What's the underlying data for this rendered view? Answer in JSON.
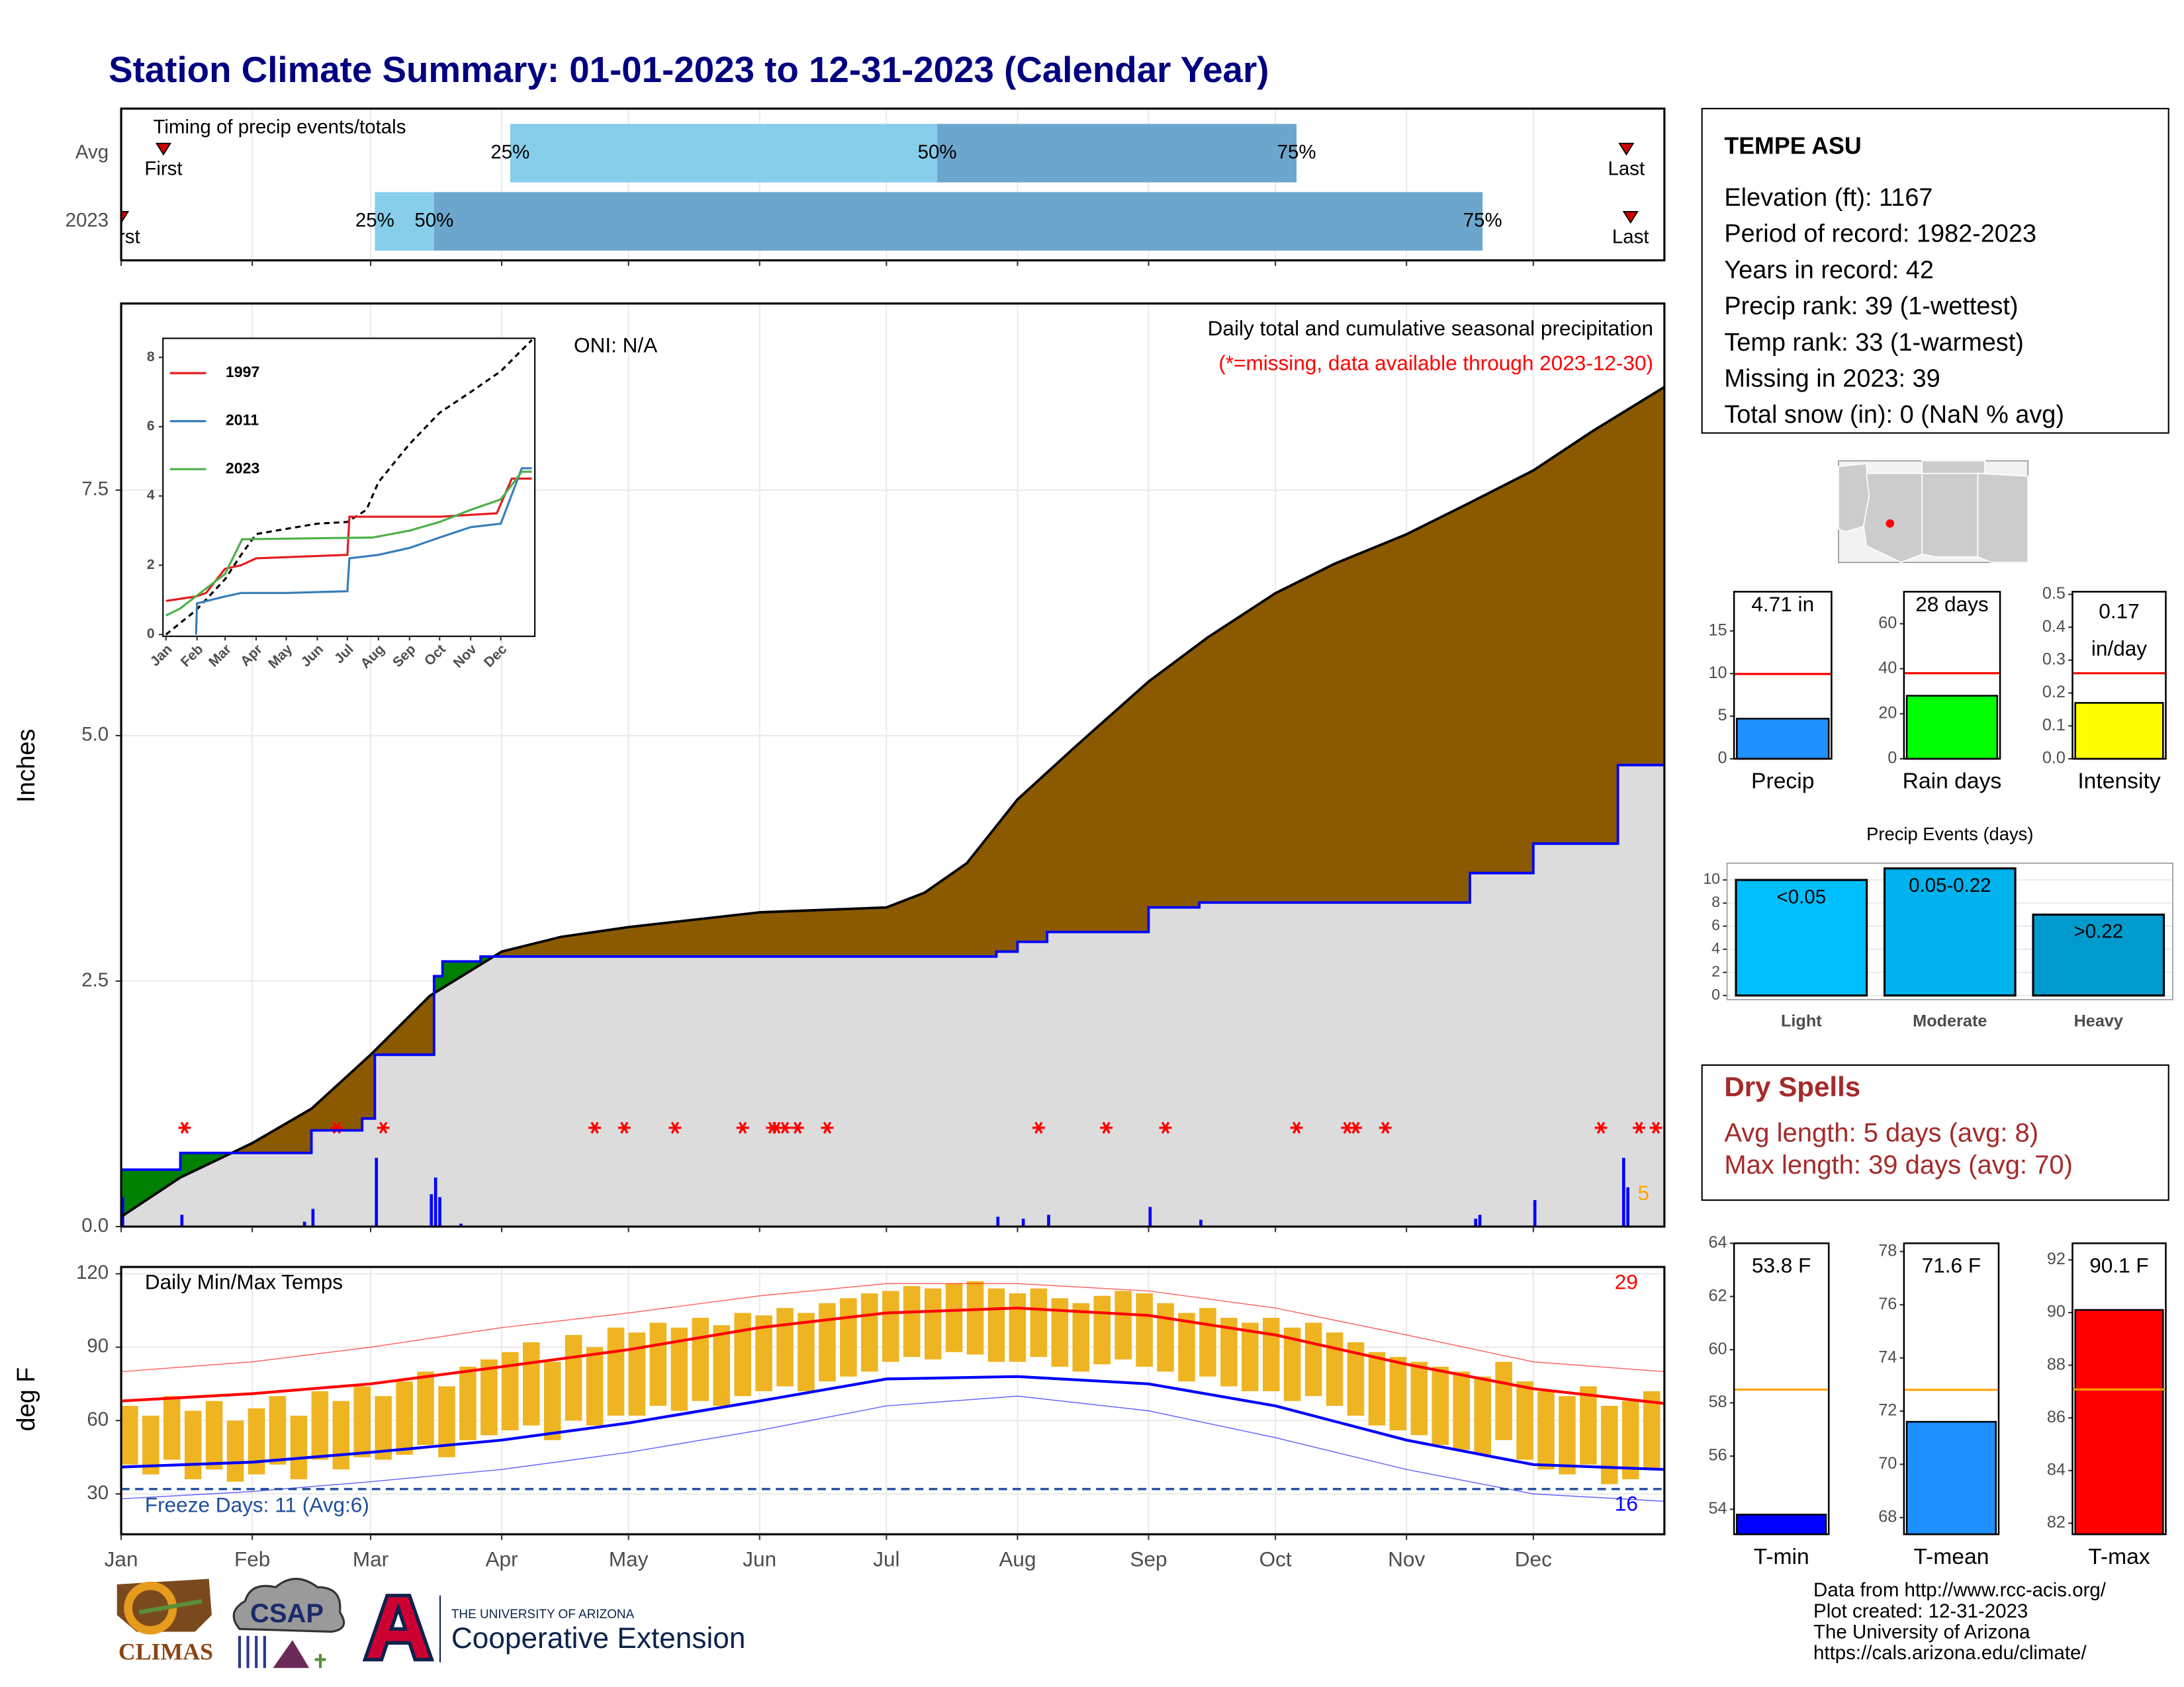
{
  "title": "Station Climate Summary: 01-01-2023 to 12-31-2023 (Calendar Year)",
  "x_axis": {
    "xlim": [
      0,
      365
    ],
    "xticks": [
      {
        "value": 0,
        "label": "Jan"
      },
      {
        "value": 31,
        "label": "Feb"
      },
      {
        "value": 59,
        "label": "Mar"
      },
      {
        "value": 90,
        "label": "Apr"
      },
      {
        "value": 120,
        "label": "May"
      },
      {
        "value": 151,
        "label": "Jun"
      },
      {
        "value": 181,
        "label": "Jul"
      },
      {
        "value": 212,
        "label": "Aug"
      },
      {
        "value": 243,
        "label": "Sep"
      },
      {
        "value": 273,
        "label": "Oct"
      },
      {
        "value": 304,
        "label": "Nov"
      },
      {
        "value": 334,
        "label": "Dec"
      }
    ]
  },
  "chart_data": [
    {
      "type": "timing",
      "title": "Timing of precip events/totals",
      "first_label": "First",
      "last_label": "Last",
      "quantile_labels": [
        "25%",
        "50%",
        "75%"
      ],
      "colors": [
        "#87CEEB",
        "#6CA6CD"
      ],
      "rows": [
        {
          "name": "Avg",
          "first": 10,
          "quantiles": [
            92,
            193,
            278
          ],
          "last": 356
        },
        {
          "name": "2023",
          "first": 0,
          "quantiles": [
            60,
            74,
            322
          ],
          "last": 357
        }
      ]
    },
    {
      "type": "cumulative_precip",
      "title": "Daily total and cumulative seasonal precipitation",
      "subtitle": "(*=missing, data available through 2023-12-30)",
      "annotation": "ONI: N/A",
      "ylabel": "Inches",
      "ylim": [
        0,
        9.4
      ],
      "yticks": [
        {
          "value": 0,
          "label": "0.0"
        },
        2.5,
        {
          "value": 5,
          "label": "5.0"
        },
        7.5
      ],
      "grid": true,
      "average": {
        "color": "#8B5A00",
        "x": [
          0,
          14,
          31,
          45,
          59,
          73,
          90,
          104,
          120,
          151,
          181,
          190,
          200,
          212,
          226,
          243,
          257,
          273,
          287,
          304,
          318,
          334,
          348,
          365
        ],
        "values": [
          0.1,
          0.5,
          0.85,
          1.2,
          1.75,
          2.35,
          2.8,
          2.95,
          3.05,
          3.2,
          3.25,
          3.4,
          3.7,
          4.35,
          4.9,
          5.55,
          6.0,
          6.45,
          6.75,
          7.05,
          7.35,
          7.7,
          8.1,
          8.55
        ]
      },
      "observed": {
        "color": "#0000FF",
        "x": [
          0,
          14,
          45,
          57,
          60,
          74,
          76,
          85,
          207,
          212,
          219,
          243,
          255,
          319,
          334,
          354,
          365
        ],
        "values": [
          0.58,
          0.75,
          0.98,
          1.1,
          1.75,
          2.55,
          2.7,
          2.75,
          2.8,
          2.9,
          3.0,
          3.25,
          3.3,
          3.6,
          3.9,
          4.7,
          4.7
        ]
      },
      "daily": {
        "color": "#0000FF",
        "x": [
          0,
          14,
          43,
          45,
          60,
          73,
          74,
          75,
          80,
          207,
          213,
          219,
          243,
          255,
          320,
          321,
          334,
          355,
          356
        ],
        "values": [
          0.3,
          0.12,
          0.05,
          0.18,
          0.7,
          0.33,
          0.5,
          0.3,
          0.03,
          0.1,
          0.08,
          0.12,
          0.2,
          0.07,
          0.08,
          0.12,
          0.27,
          0.7,
          0.4
        ]
      },
      "missing_days": [
        15,
        51,
        62,
        112,
        119,
        131,
        147,
        154,
        155,
        157,
        160,
        167,
        217,
        233,
        247,
        278,
        290,
        292,
        299,
        350,
        359,
        363
      ],
      "extreme_count": 5
    },
    {
      "type": "line",
      "xlim": [
        -3,
        368
      ],
      "ylim": [
        -0.05,
        8.55
      ],
      "yticks": [
        0,
        2,
        4,
        6,
        8
      ],
      "xticks": [
        {
          "value": 0,
          "label": "Jan"
        },
        {
          "value": 31,
          "label": "Feb"
        },
        {
          "value": 59,
          "label": "Mar"
        },
        {
          "value": 90,
          "label": "Apr"
        },
        {
          "value": 120,
          "label": "May"
        },
        {
          "value": 151,
          "label": "Jun"
        },
        {
          "value": 181,
          "label": "Jul"
        },
        {
          "value": 212,
          "label": "Aug"
        },
        {
          "value": 243,
          "label": "Sep"
        },
        {
          "value": 273,
          "label": "Oct"
        },
        {
          "value": 304,
          "label": "Nov"
        },
        {
          "value": 334,
          "label": "Dec"
        }
      ],
      "average": {
        "color": "#000000",
        "x": [
          0,
          30,
          59,
          75,
          90,
          120,
          151,
          181,
          200,
          212,
          243,
          273,
          304,
          334,
          365
        ],
        "values": [
          0,
          0.7,
          1.6,
          2.3,
          2.9,
          3.05,
          3.2,
          3.25,
          3.6,
          4.4,
          5.5,
          6.4,
          7.0,
          7.6,
          8.5
        ]
      },
      "series": [
        {
          "name": "1997",
          "color": "#E41A1C",
          "x": [
            0,
            30,
            40,
            59,
            75,
            90,
            181,
            183,
            273,
            330,
            345,
            365
          ],
          "values": [
            0.97,
            1.1,
            1.2,
            1.9,
            2.0,
            2.2,
            2.3,
            3.4,
            3.4,
            3.5,
            4.5,
            4.5
          ]
        },
        {
          "name": "2011",
          "color": "#377EB8",
          "x": [
            30,
            31,
            59,
            75,
            120,
            181,
            183,
            212,
            243,
            273,
            304,
            334,
            355,
            365
          ],
          "values": [
            0,
            0.9,
            1.1,
            1.2,
            1.2,
            1.25,
            2.2,
            2.3,
            2.5,
            2.8,
            3.1,
            3.2,
            4.8,
            4.8
          ]
        },
        {
          "name": "2023",
          "color": "#4DAF4A",
          "x": [
            0,
            14,
            59,
            76,
            206,
            243,
            273,
            304,
            334,
            355,
            365
          ],
          "values": [
            0.55,
            0.75,
            1.75,
            2.75,
            2.8,
            3.0,
            3.25,
            3.6,
            3.9,
            4.7,
            4.7
          ]
        }
      ]
    },
    {
      "type": "temperature",
      "title": "Daily Min/Max Temps",
      "ylabel": "deg F",
      "ylim": [
        13.5,
        122.8
      ],
      "yticks": [
        30,
        60,
        90,
        120
      ],
      "bar_color": "#EEB422",
      "x": [
        2,
        7,
        12,
        17,
        22,
        27,
        32,
        37,
        42,
        47,
        52,
        57,
        62,
        67,
        72,
        77,
        82,
        87,
        92,
        97,
        102,
        107,
        112,
        117,
        122,
        127,
        132,
        137,
        142,
        147,
        152,
        157,
        162,
        167,
        172,
        177,
        182,
        187,
        192,
        197,
        202,
        207,
        212,
        217,
        222,
        227,
        232,
        237,
        242,
        247,
        252,
        257,
        262,
        267,
        272,
        277,
        282,
        287,
        292,
        297,
        302,
        307,
        312,
        317,
        322,
        327,
        332,
        337,
        342,
        347,
        352,
        357,
        362
      ],
      "max": [
        66,
        62,
        70,
        64,
        68,
        60,
        65,
        70,
        62,
        72,
        68,
        74,
        70,
        76,
        80,
        74,
        82,
        85,
        88,
        92,
        84,
        95,
        90,
        98,
        96,
        100,
        98,
        102,
        99,
        104,
        103,
        106,
        104,
        108,
        110,
        112,
        113,
        115,
        114,
        116,
        117,
        114,
        112,
        114,
        110,
        108,
        111,
        113,
        112,
        108,
        104,
        106,
        102,
        100,
        102,
        98,
        100,
        96,
        92,
        88,
        86,
        84,
        82,
        80,
        78,
        84,
        76,
        72,
        70,
        74,
        66,
        68,
        72
      ],
      "min": [
        42,
        38,
        44,
        36,
        40,
        35,
        38,
        42,
        36,
        44,
        40,
        45,
        44,
        46,
        50,
        45,
        52,
        54,
        56,
        58,
        52,
        60,
        58,
        62,
        62,
        66,
        64,
        68,
        66,
        70,
        72,
        74,
        72,
        76,
        78,
        80,
        84,
        86,
        85,
        88,
        87,
        84,
        84,
        86,
        82,
        80,
        83,
        85,
        82,
        80,
        76,
        78,
        74,
        72,
        72,
        68,
        70,
        66,
        62,
        58,
        56,
        54,
        50,
        48,
        46,
        52,
        44,
        40,
        38,
        42,
        34,
        36,
        40
      ],
      "normals": {
        "x": [
          0,
          31,
          59,
          90,
          120,
          151,
          181,
          212,
          243,
          273,
          304,
          334,
          365
        ],
        "max": [
          68,
          71,
          75,
          82,
          89,
          98,
          104,
          106,
          103,
          95,
          83,
          73,
          67
        ],
        "min": [
          41,
          43,
          47,
          52,
          59,
          68,
          77,
          78,
          75,
          66,
          52,
          42,
          40
        ],
        "record_max": [
          80,
          84,
          90,
          98,
          104,
          111,
          116,
          116,
          113,
          106,
          95,
          84,
          80
        ],
        "record_min": [
          28,
          31,
          35,
          40,
          47,
          56,
          66,
          70,
          64,
          53,
          40,
          30,
          27
        ]
      },
      "freeze_line": 32,
      "freeze_label": "Freeze Days: 11 (Avg:6)",
      "hot_count": 29,
      "cold_count": 16
    },
    {
      "type": "summary_bar",
      "label": "Precip",
      "value": 4.71,
      "value_label": [
        "4.71 in"
      ],
      "average": 9.95,
      "ylim": [
        0,
        19.6
      ],
      "yticks": [
        0,
        5,
        10,
        15
      ],
      "color": "#1E90FF",
      "avg_color": "#FF0000"
    },
    {
      "type": "summary_bar",
      "label": "Rain days",
      "value": 28,
      "value_label": [
        "28 days"
      ],
      "average": 38,
      "ylim": [
        0,
        74.2
      ],
      "yticks": [
        0,
        20,
        40,
        60
      ],
      "color": "#00FF00",
      "avg_color": "#FF0000"
    },
    {
      "type": "summary_bar",
      "label": "Intensity",
      "value": 0.17,
      "value_label": [
        "0.17",
        "in/day"
      ],
      "average": 0.26,
      "ylim": [
        0,
        0.508
      ],
      "yticks": [
        {
          "value": 0,
          "label": "0.0"
        },
        0.1,
        0.2,
        0.3,
        0.4,
        0.5
      ],
      "color": "#FFFF00",
      "avg_color": "#FF0000"
    },
    {
      "type": "bar",
      "title": "Precip Events (days)",
      "categories": [
        "Light",
        "Moderate",
        "Heavy"
      ],
      "ranges": [
        "<0.05",
        "0.05-0.22",
        ">0.22"
      ],
      "values": [
        10,
        11,
        7
      ],
      "ylim": [
        -0.36,
        11.45
      ],
      "yticks": [
        0,
        2,
        4,
        6,
        8,
        10
      ],
      "colors": [
        "#00BFFF",
        "#00B2EE",
        "#009ACD"
      ]
    },
    {
      "type": "summary_bar",
      "label": "T-min",
      "value": 53.8,
      "value_label": [
        "53.8 F"
      ],
      "average": 58.5,
      "ylim": [
        53.06,
        64
      ],
      "yticks": [
        54,
        56,
        58,
        60,
        62,
        64
      ],
      "color": "#0000FF",
      "avg_color": "#FFA500"
    },
    {
      "type": "summary_bar",
      "label": "T-mean",
      "value": 71.6,
      "value_label": [
        "71.6 F"
      ],
      "average": 72.8,
      "ylim": [
        67.37,
        78.31
      ],
      "yticks": [
        68,
        70,
        72,
        74,
        76,
        78
      ],
      "color": "#1E90FF",
      "avg_color": "#FFA500"
    },
    {
      "type": "summary_bar",
      "label": "T-max",
      "value": 90.1,
      "value_label": [
        "90.1 F"
      ],
      "average": 87.08,
      "ylim": [
        81.58,
        92.63
      ],
      "yticks": [
        82,
        84,
        86,
        88,
        90,
        92
      ],
      "color": "#FF0000",
      "avg_color": "#FFA500"
    }
  ],
  "station": {
    "name": "TEMPE ASU",
    "lines": [
      "Elevation (ft): 1167",
      "Period of record: 1982-2023",
      "Years in record: 42",
      "Precip rank: 39 (1-wettest)",
      "Temp rank: 33 (1-warmest)",
      "Missing in 2023: 39",
      "Total snow (in): 0 (NaN % avg)"
    ]
  },
  "dry_spells": {
    "title": "Dry Spells",
    "lines": [
      "Avg length: 5 days (avg: 8)",
      "Max length: 39 days (avg: 70)"
    ]
  },
  "footer": [
    "Data from http://www.rcc-acis.org/",
    "Plot created: 12-31-2023",
    "The University of Arizona",
    "https://cals.arizona.edu/climate/"
  ],
  "logos": {
    "climas": "CLIMAS",
    "csap": "CSAP",
    "university": "THE UNIVERSITY OF ARIZONA",
    "extension": "Cooperative Extension"
  }
}
